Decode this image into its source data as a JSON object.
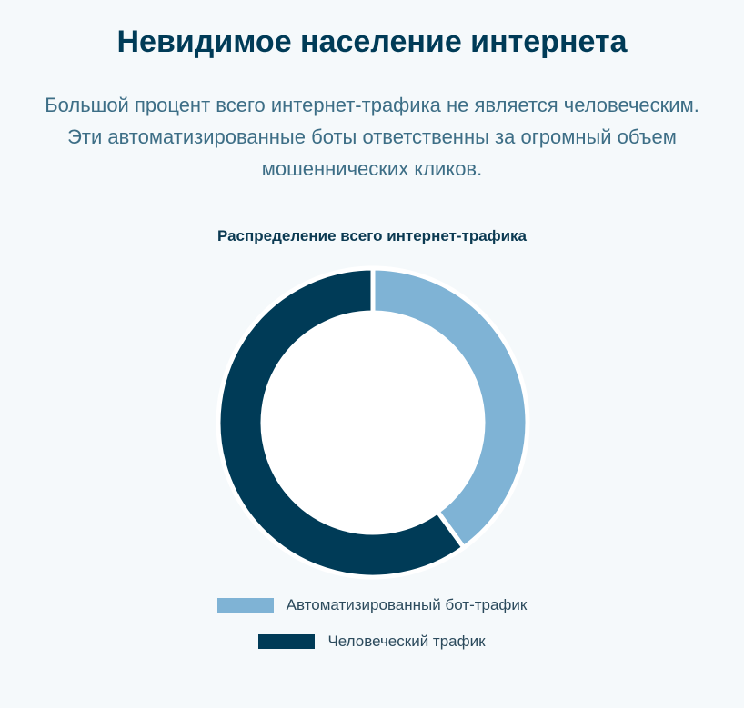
{
  "header": {
    "title": "Невидимое население интернета",
    "subtitle": "Большой процент всего интернет-трафика не является человеческим. Эти автоматизированные боты ответственны за огромный объем мошеннических кликов."
  },
  "chart_data": {
    "type": "pie",
    "variant": "doughnut",
    "title": "Распределение всего интернет-трафика",
    "categories": [
      "Автоматизированный бот-трафик",
      "Человеческий трафик"
    ],
    "values": [
      40,
      60
    ],
    "colors": [
      "#7fb3d5",
      "#003b57"
    ],
    "legend_position": "bottom"
  }
}
